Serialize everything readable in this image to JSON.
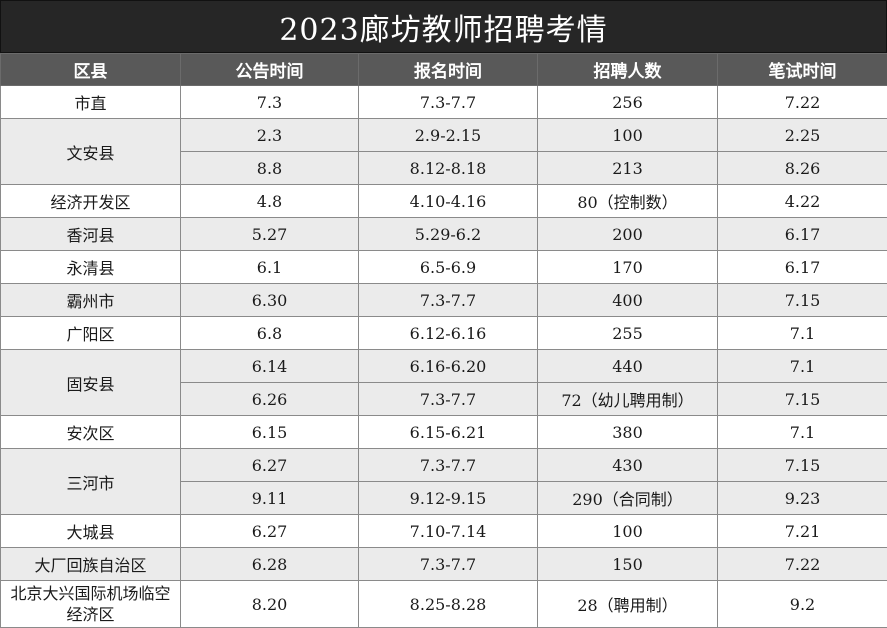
{
  "title": "2023廊坊教师招聘考情",
  "headers": [
    "区县",
    "公告时间",
    "报名时间",
    "招聘人数",
    "笔试时间"
  ],
  "rows": [
    {
      "district": "市直",
      "announce": "7.3",
      "register": "7.3-7.7",
      "hires": "256",
      "exam": "7.22"
    },
    {
      "district": "文安县",
      "announce": "2.3",
      "register": "2.9-2.15",
      "hires": "100",
      "exam": "2.25"
    },
    {
      "district": "",
      "announce": "8.8",
      "register": "8.12-8.18",
      "hires": "213",
      "exam": "8.26"
    },
    {
      "district": "经济开发区",
      "announce": "4.8",
      "register": "4.10-4.16",
      "hires": "80（控制数）",
      "exam": "4.22"
    },
    {
      "district": "香河县",
      "announce": "5.27",
      "register": "5.29-6.2",
      "hires": "200",
      "exam": "6.17"
    },
    {
      "district": "永清县",
      "announce": "6.1",
      "register": "6.5-6.9",
      "hires": "170",
      "exam": "6.17"
    },
    {
      "district": "霸州市",
      "announce": "6.30",
      "register": "7.3-7.7",
      "hires": "400",
      "exam": "7.15"
    },
    {
      "district": "广阳区",
      "announce": "6.8",
      "register": "6.12-6.16",
      "hires": "255",
      "exam": "7.1"
    },
    {
      "district": "固安县",
      "announce": "6.14",
      "register": "6.16-6.20",
      "hires": "440",
      "exam": "7.1"
    },
    {
      "district": "",
      "announce": "6.26",
      "register": "7.3-7.7",
      "hires": "72（幼儿聘用制）",
      "exam": "7.15"
    },
    {
      "district": "安次区",
      "announce": "6.15",
      "register": "6.15-6.21",
      "hires": "380",
      "exam": "7.1"
    },
    {
      "district": "三河市",
      "announce": "6.27",
      "register": "7.3-7.7",
      "hires": "430",
      "exam": "7.15"
    },
    {
      "district": "",
      "announce": "9.11",
      "register": "9.12-9.15",
      "hires": "290（合同制）",
      "exam": "9.23"
    },
    {
      "district": "大城县",
      "announce": "6.27",
      "register": "7.10-7.14",
      "hires": "100",
      "exam": "7.21"
    },
    {
      "district": "大厂回族自治区",
      "announce": "6.28",
      "register": "7.3-7.7",
      "hires": "150",
      "exam": "7.22"
    },
    {
      "district": "北京大兴国际机场临空经济区",
      "announce": "8.20",
      "register": "8.25-8.28",
      "hires": "28（聘用制）",
      "exam": "9.2"
    }
  ],
  "colors": {
    "title_bg": "#262626",
    "header_bg": "#595959",
    "band_bg": "#ebebeb",
    "plain_bg": "#ffffff",
    "border": "#8a8a8a"
  }
}
